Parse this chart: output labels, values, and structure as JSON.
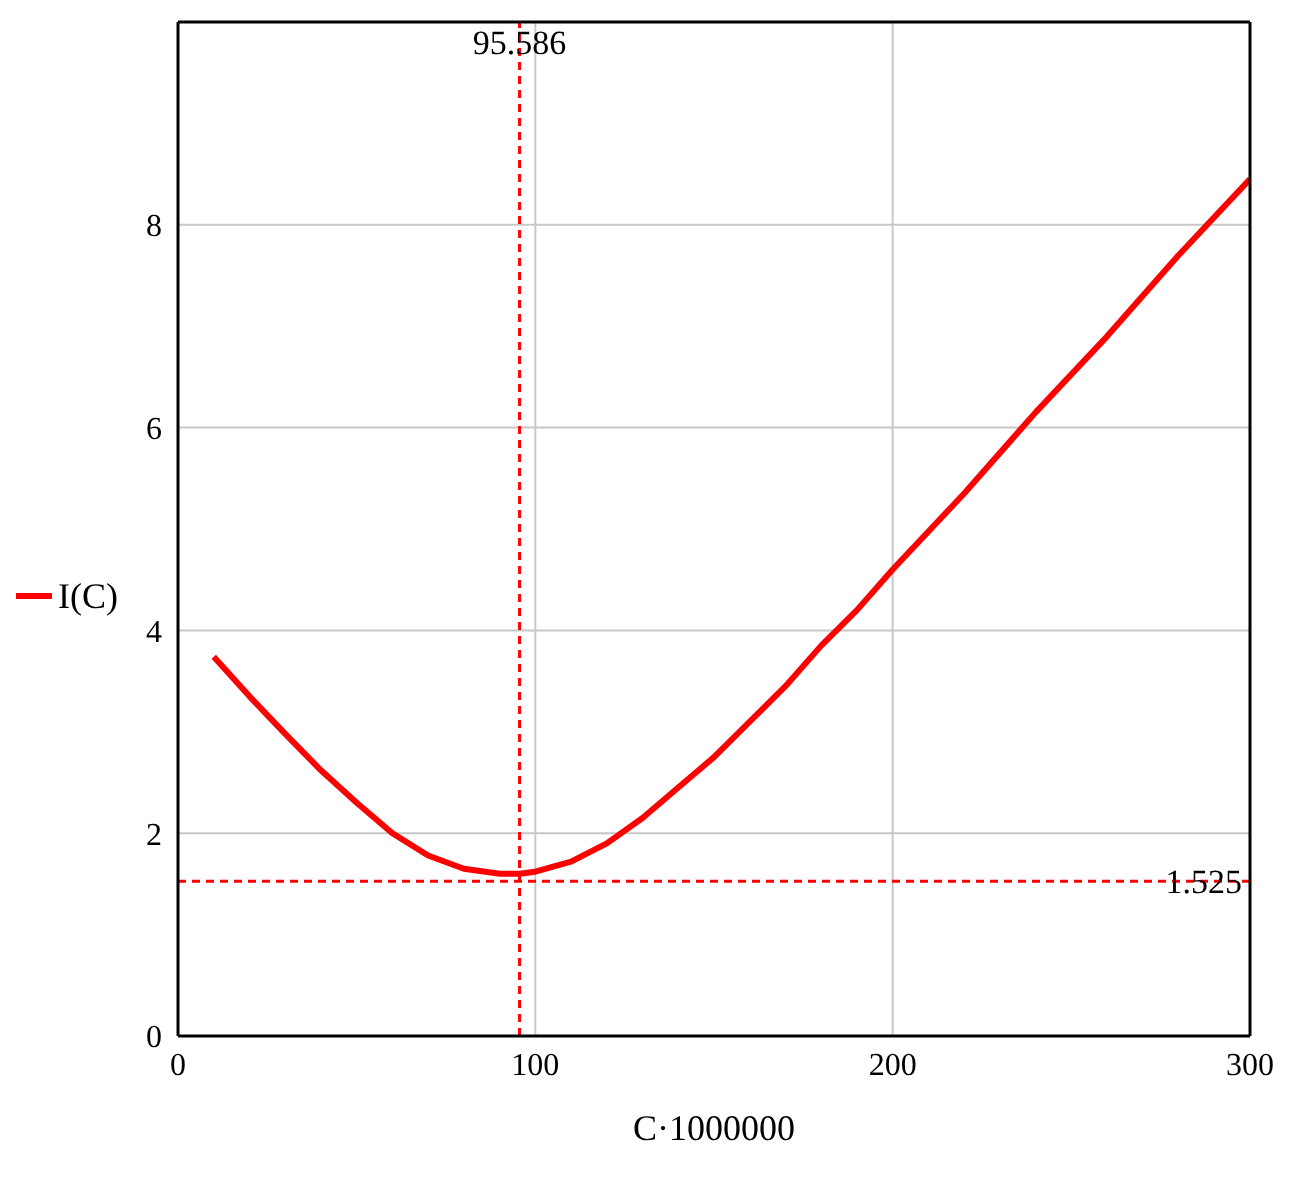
{
  "chart_data": {
    "type": "line",
    "xlabel": "C·1000000",
    "xlim": [
      0,
      300
    ],
    "xticks": [
      0,
      100,
      200,
      300
    ],
    "ylim": [
      0,
      10
    ],
    "yticks": [
      0,
      2,
      4,
      6,
      8
    ],
    "grid": true,
    "legend": "left",
    "marker": "none",
    "line_style": "solid",
    "series": [
      {
        "name": "I(C)",
        "color": "#ff0000",
        "x": [
          10,
          20,
          30,
          40,
          50,
          60,
          70,
          80,
          90,
          95.586,
          100,
          110,
          120,
          130,
          140,
          150,
          160,
          170,
          180,
          190,
          200,
          220,
          240,
          260,
          280,
          300
        ],
        "values": [
          3.74,
          3.35,
          2.98,
          2.62,
          2.3,
          2.0,
          1.78,
          1.65,
          1.6,
          1.6,
          1.62,
          1.72,
          1.9,
          2.15,
          2.45,
          2.75,
          3.1,
          3.45,
          3.85,
          4.2,
          4.6,
          5.35,
          6.15,
          6.9,
          7.7,
          8.45
        ]
      }
    ],
    "ref_lines": [
      {
        "axis": "x",
        "value": 95.586,
        "label": "95.586",
        "color": "#ff0000",
        "line_style": "dashed"
      },
      {
        "axis": "y",
        "value": 1.525,
        "label": "1.525",
        "color": "#ff0000",
        "line_style": "dashed"
      }
    ]
  }
}
